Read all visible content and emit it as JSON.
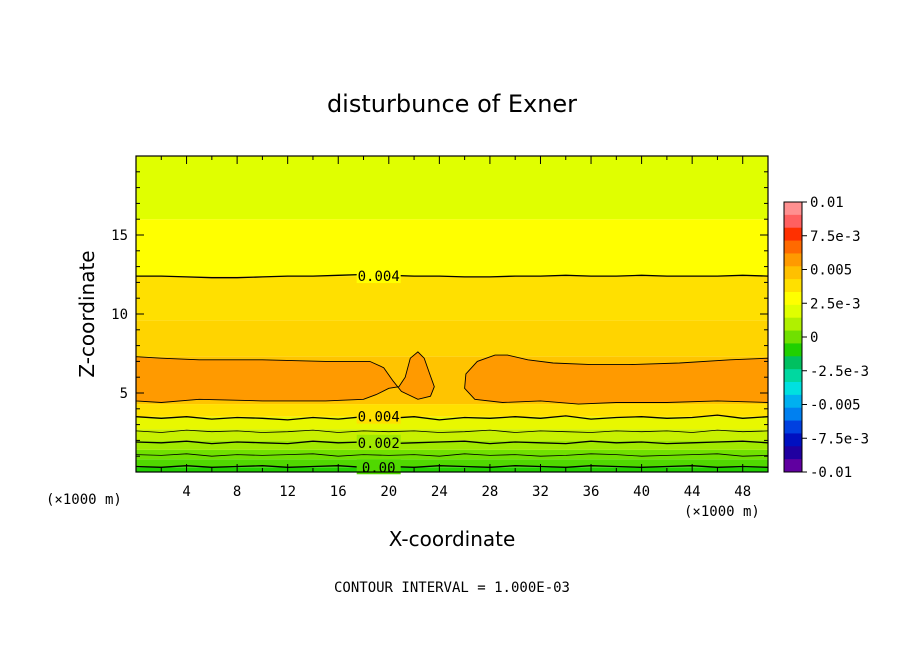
{
  "chart_data": {
    "type": "heatmap",
    "title": "disturbunce of Exner",
    "xlabel": "X-coordinate",
    "ylabel": "Z-coordinate",
    "x_unit": "(×1000 m)",
    "x_unit_right": "(×1000 m)",
    "xlim": [
      0,
      50
    ],
    "ylim": [
      0,
      20
    ],
    "x_ticks": [
      4,
      8,
      12,
      16,
      20,
      24,
      28,
      32,
      36,
      40,
      44,
      48
    ],
    "y_ticks": [
      5,
      10,
      15
    ],
    "note": "CONTOUR INTERVAL = 1.000E-03",
    "colorbar": {
      "min": -0.01,
      "max": 0.01,
      "labels": [
        "0.01",
        "7.5e-3",
        "0.005",
        "2.5e-3",
        "0",
        "-2.5e-3",
        "-0.005",
        "-7.5e-3",
        "-0.01"
      ],
      "colors": [
        "#ff9090",
        "#ff6060",
        "#ff3000",
        "#ff6a00",
        "#ff9a00",
        "#ffc000",
        "#ffe000",
        "#ffff00",
        "#e0ff00",
        "#b0f000",
        "#70e000",
        "#20d000",
        "#00c060",
        "#00d8a0",
        "#00e0e0",
        "#00b0f0",
        "#0080f0",
        "#0040e0",
        "#0010c0",
        "#2000a0",
        "#6000a0"
      ]
    },
    "bands": [
      {
        "z0": 0.0,
        "z1": 0.3,
        "color": "#20d000"
      },
      {
        "z0": 0.3,
        "z1": 0.8,
        "color": "#50d800"
      },
      {
        "z0": 0.8,
        "z1": 1.4,
        "color": "#70e000"
      },
      {
        "z0": 1.4,
        "z1": 2.0,
        "color": "#a0e800"
      },
      {
        "z0": 2.0,
        "z1": 2.7,
        "color": "#c8f000"
      },
      {
        "z0": 2.7,
        "z1": 3.5,
        "color": "#e8f800"
      },
      {
        "z0": 3.5,
        "z1": 4.3,
        "color": "#ffe000"
      },
      {
        "z0": 4.3,
        "z1": 7.3,
        "color": "#ffc400"
      },
      {
        "z0": 7.3,
        "z1": 9.6,
        "color": "#ffd400"
      },
      {
        "z0": 9.6,
        "z1": 12.4,
        "color": "#ffe000"
      },
      {
        "z0": 12.4,
        "z1": 16.0,
        "color": "#ffff00"
      },
      {
        "z0": 16.0,
        "z1": 20.0,
        "color": "#e0ff00"
      }
    ],
    "high_region_color": "#ff9a00",
    "high_region_left": [
      [
        0,
        4.5
      ],
      [
        2,
        4.4
      ],
      [
        5,
        4.6
      ],
      [
        10,
        4.5
      ],
      [
        15,
        4.5
      ],
      [
        18,
        4.6
      ],
      [
        19,
        4.9
      ],
      [
        20,
        5.3
      ],
      [
        20.8,
        5.4
      ],
      [
        21.3,
        6.0
      ],
      [
        21.7,
        7.2
      ],
      [
        22.3,
        7.6
      ],
      [
        22.8,
        7.2
      ],
      [
        23.2,
        6.3
      ],
      [
        23.6,
        5.4
      ],
      [
        23.3,
        4.8
      ],
      [
        22.3,
        4.6
      ],
      [
        21.0,
        5.1
      ],
      [
        20.3,
        5.8
      ],
      [
        19.6,
        6.6
      ],
      [
        18.5,
        7.0
      ],
      [
        15,
        7.0
      ],
      [
        10,
        7.1
      ],
      [
        5,
        7.1
      ],
      [
        2,
        7.2
      ],
      [
        0,
        7.3
      ]
    ],
    "high_region_right": [
      [
        26.0,
        5.3
      ],
      [
        26.8,
        4.6
      ],
      [
        29,
        4.4
      ],
      [
        32,
        4.5
      ],
      [
        35,
        4.3
      ],
      [
        38,
        4.4
      ],
      [
        42,
        4.4
      ],
      [
        46,
        4.5
      ],
      [
        50,
        4.4
      ],
      [
        50,
        7.2
      ],
      [
        47,
        7.1
      ],
      [
        43,
        6.9
      ],
      [
        39,
        6.8
      ],
      [
        36,
        6.8
      ],
      [
        33,
        6.9
      ],
      [
        31,
        7.1
      ],
      [
        29.4,
        7.4
      ],
      [
        28.4,
        7.4
      ],
      [
        27.0,
        7.0
      ],
      [
        26.1,
        6.2
      ]
    ],
    "contours": [
      {
        "value": "0.004",
        "z": [
          12.4,
          12.4,
          12.35,
          12.3,
          12.3,
          12.35,
          12.4,
          12.4,
          12.45,
          12.5,
          12.45,
          12.4,
          12.4,
          12.35,
          12.35,
          12.4,
          12.4,
          12.45,
          12.4,
          12.4,
          12.45,
          12.4,
          12.4,
          12.4,
          12.45,
          12.4
        ],
        "labeled": true
      },
      {
        "value": "0.004",
        "z": [
          3.5,
          3.4,
          3.5,
          3.35,
          3.45,
          3.4,
          3.3,
          3.45,
          3.35,
          3.5,
          3.4,
          3.5,
          3.3,
          3.45,
          3.4,
          3.5,
          3.4,
          3.55,
          3.35,
          3.45,
          3.5,
          3.4,
          3.45,
          3.6,
          3.4,
          3.5
        ],
        "labeled": true
      },
      {
        "value": "0.003",
        "z": [
          2.6,
          2.5,
          2.65,
          2.55,
          2.6,
          2.5,
          2.55,
          2.65,
          2.5,
          2.6,
          2.55,
          2.6,
          2.5,
          2.55,
          2.65,
          2.5,
          2.6,
          2.55,
          2.5,
          2.6,
          2.55,
          2.6,
          2.5,
          2.65,
          2.55,
          2.6
        ],
        "labeled": false
      },
      {
        "value": "0.002",
        "z": [
          1.9,
          1.85,
          1.95,
          1.8,
          1.9,
          1.85,
          1.8,
          1.95,
          1.85,
          1.9,
          1.8,
          1.85,
          1.9,
          1.95,
          1.8,
          1.9,
          1.85,
          1.8,
          1.95,
          1.85,
          1.9,
          1.8,
          1.85,
          1.9,
          1.95,
          1.85
        ],
        "labeled": true
      },
      {
        "value": "0.001",
        "z": [
          1.1,
          1.05,
          1.15,
          1.0,
          1.1,
          1.05,
          1.1,
          1.15,
          1.0,
          1.1,
          1.05,
          1.1,
          1.0,
          1.15,
          1.05,
          1.1,
          1.0,
          1.05,
          1.15,
          1.1,
          1.0,
          1.05,
          1.1,
          1.15,
          1.0,
          1.05
        ],
        "labeled": false
      },
      {
        "value": "0.00",
        "z": [
          0.35,
          0.3,
          0.4,
          0.3,
          0.35,
          0.4,
          0.3,
          0.35,
          0.4,
          0.3,
          0.35,
          0.3,
          0.4,
          0.35,
          0.3,
          0.4,
          0.35,
          0.3,
          0.4,
          0.35,
          0.3,
          0.35,
          0.4,
          0.3,
          0.35,
          0.3
        ],
        "labeled": true
      }
    ]
  }
}
